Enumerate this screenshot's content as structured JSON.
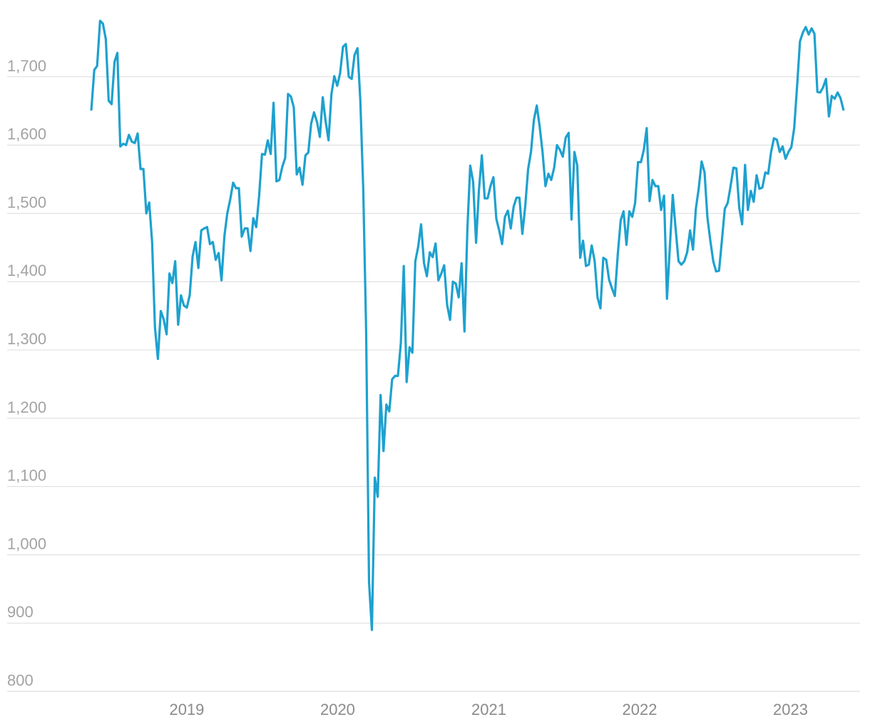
{
  "chart_data": {
    "type": "line",
    "title": "",
    "xlabel": "",
    "ylabel": "",
    "ylim": [
      800,
      1800
    ],
    "xlim": [
      "2018-05-01",
      "2023-06-01"
    ],
    "y_ticks": [
      "800",
      "900",
      "1,000",
      "1,100",
      "1,200",
      "1,300",
      "1,400",
      "1,500",
      "1,600",
      "1,700"
    ],
    "x_ticks": [
      "2019",
      "2020",
      "2021",
      "2022",
      "2023"
    ],
    "grid": true,
    "legend": "none",
    "color": "#1da1cf",
    "series": [
      {
        "x": [
          "2018-05-15",
          "2018-05-22",
          "2018-05-29",
          "2018-06-05",
          "2018-06-12",
          "2018-06-19",
          "2018-06-26",
          "2018-07-03",
          "2018-07-10",
          "2018-07-17",
          "2018-07-24",
          "2018-07-31",
          "2018-08-07",
          "2018-08-14",
          "2018-08-21",
          "2018-08-28",
          "2018-09-04",
          "2018-09-11",
          "2018-09-18",
          "2018-09-25",
          "2018-10-02",
          "2018-10-09",
          "2018-10-16",
          "2018-10-23",
          "2018-10-30",
          "2018-11-06",
          "2018-11-13",
          "2018-11-20",
          "2018-11-27",
          "2018-12-04",
          "2018-12-11",
          "2018-12-18",
          "2018-12-25",
          "2019-01-01",
          "2019-01-08",
          "2019-01-15",
          "2019-01-22",
          "2019-01-29",
          "2019-02-05",
          "2019-02-12",
          "2019-02-19",
          "2019-02-26",
          "2019-03-05",
          "2019-03-12",
          "2019-03-19",
          "2019-03-26",
          "2019-04-02",
          "2019-04-09",
          "2019-04-16",
          "2019-04-23",
          "2019-04-30",
          "2019-05-07",
          "2019-05-14",
          "2019-05-21",
          "2019-05-28",
          "2019-06-04",
          "2019-06-11",
          "2019-06-18",
          "2019-06-25",
          "2019-07-02",
          "2019-07-09",
          "2019-07-16",
          "2019-07-23",
          "2019-07-30",
          "2019-08-06",
          "2019-08-13",
          "2019-08-20",
          "2019-08-27",
          "2019-09-03",
          "2019-09-10",
          "2019-09-17",
          "2019-09-24",
          "2019-10-01",
          "2019-10-08",
          "2019-10-15",
          "2019-10-22",
          "2019-10-29",
          "2019-11-05",
          "2019-11-12",
          "2019-11-19",
          "2019-11-26",
          "2019-12-03",
          "2019-12-10",
          "2019-12-17",
          "2019-12-24",
          "2019-12-31",
          "2020-01-07",
          "2020-01-14",
          "2020-01-21",
          "2020-01-28",
          "2020-02-04",
          "2020-02-11",
          "2020-02-18",
          "2020-02-25",
          "2020-03-03",
          "2020-03-10",
          "2020-03-17",
          "2020-03-24",
          "2020-03-31",
          "2020-04-07",
          "2020-04-14",
          "2020-04-21",
          "2020-04-28",
          "2020-05-05",
          "2020-05-12",
          "2020-05-19",
          "2020-05-26",
          "2020-06-02",
          "2020-06-09",
          "2020-06-16",
          "2020-06-23",
          "2020-06-30",
          "2020-07-07",
          "2020-07-14",
          "2020-07-21",
          "2020-07-28",
          "2020-08-04",
          "2020-08-11",
          "2020-08-18",
          "2020-08-25",
          "2020-09-01",
          "2020-09-08",
          "2020-09-15",
          "2020-09-22",
          "2020-09-29",
          "2020-10-06",
          "2020-10-13",
          "2020-10-20",
          "2020-10-27",
          "2020-11-03",
          "2020-11-10",
          "2020-11-17",
          "2020-11-24",
          "2020-12-01",
          "2020-12-08",
          "2020-12-15",
          "2020-12-22",
          "2020-12-29",
          "2021-01-05",
          "2021-01-12",
          "2021-01-19",
          "2021-01-26",
          "2021-02-02",
          "2021-02-09",
          "2021-02-16",
          "2021-02-23",
          "2021-03-02",
          "2021-03-09",
          "2021-03-16",
          "2021-03-23",
          "2021-03-30",
          "2021-04-06",
          "2021-04-13",
          "2021-04-20",
          "2021-04-27",
          "2021-05-04",
          "2021-05-11",
          "2021-05-18",
          "2021-05-25",
          "2021-06-01",
          "2021-06-08",
          "2021-06-15",
          "2021-06-22",
          "2021-06-29",
          "2021-07-06",
          "2021-07-13",
          "2021-07-20",
          "2021-07-27",
          "2021-08-03",
          "2021-08-10",
          "2021-08-17",
          "2021-08-24",
          "2021-08-31",
          "2021-09-07",
          "2021-09-14",
          "2021-09-21",
          "2021-09-28",
          "2021-10-05",
          "2021-10-12",
          "2021-10-19",
          "2021-10-26",
          "2021-11-02",
          "2021-11-09",
          "2021-11-16",
          "2021-11-23",
          "2021-11-30",
          "2021-12-07",
          "2021-12-14",
          "2021-12-21",
          "2021-12-28",
          "2022-01-04",
          "2022-01-11",
          "2022-01-18",
          "2022-01-25",
          "2022-02-01",
          "2022-02-08",
          "2022-02-15",
          "2022-02-22",
          "2022-03-01",
          "2022-03-08",
          "2022-03-15",
          "2022-03-22",
          "2022-03-29",
          "2022-04-05",
          "2022-04-12",
          "2022-04-19",
          "2022-04-26",
          "2022-05-03",
          "2022-05-10",
          "2022-05-17",
          "2022-05-24",
          "2022-05-31",
          "2022-06-07",
          "2022-06-14",
          "2022-06-21",
          "2022-06-28",
          "2022-07-05",
          "2022-07-12",
          "2022-07-19",
          "2022-07-26",
          "2022-08-02",
          "2022-08-09",
          "2022-08-16",
          "2022-08-23",
          "2022-08-30",
          "2022-09-06",
          "2022-09-13",
          "2022-09-20",
          "2022-09-27",
          "2022-10-04",
          "2022-10-11",
          "2022-10-18",
          "2022-10-25",
          "2022-11-01",
          "2022-11-08",
          "2022-11-15",
          "2022-11-22",
          "2022-11-29",
          "2022-12-06",
          "2022-12-13",
          "2022-12-20",
          "2022-12-27",
          "2023-01-03",
          "2023-01-10",
          "2023-01-17",
          "2023-01-24",
          "2023-01-31",
          "2023-02-07",
          "2023-02-14",
          "2023-02-21",
          "2023-02-28",
          "2023-03-07",
          "2023-03-14",
          "2023-03-21",
          "2023-03-28",
          "2023-04-04",
          "2023-04-11",
          "2023-04-18",
          "2023-04-25",
          "2023-05-02",
          "2023-05-09"
        ],
        "values": [
          1652,
          1710,
          1716,
          1782,
          1778,
          1755,
          1665,
          1660,
          1722,
          1735,
          1598,
          1602,
          1600,
          1615,
          1605,
          1603,
          1617,
          1565,
          1565,
          1500,
          1516,
          1458,
          1333,
          1287,
          1357,
          1345,
          1323,
          1412,
          1398,
          1430,
          1337,
          1380,
          1365,
          1362,
          1380,
          1437,
          1458,
          1420,
          1475,
          1478,
          1480,
          1455,
          1458,
          1432,
          1442,
          1402,
          1467,
          1500,
          1520,
          1545,
          1537,
          1537,
          1466,
          1478,
          1478,
          1445,
          1493,
          1480,
          1526,
          1587,
          1586,
          1607,
          1587,
          1662,
          1547,
          1549,
          1568,
          1581,
          1675,
          1671,
          1655,
          1557,
          1567,
          1542,
          1585,
          1589,
          1632,
          1648,
          1634,
          1612,
          1670,
          1635,
          1607,
          1675,
          1701,
          1687,
          1705,
          1744,
          1748,
          1700,
          1697,
          1732,
          1742,
          1665,
          1535,
          1330,
          960,
          890,
          1113,
          1085,
          1234,
          1152,
          1220,
          1210,
          1257,
          1262,
          1262,
          1310,
          1423,
          1253,
          1304,
          1296,
          1430,
          1451,
          1484,
          1427,
          1408,
          1443,
          1436,
          1456,
          1402,
          1412,
          1424,
          1366,
          1344,
          1400,
          1397,
          1377,
          1427,
          1327,
          1477,
          1570,
          1546,
          1457,
          1534,
          1585,
          1522,
          1522,
          1540,
          1553,
          1492,
          1475,
          1455,
          1495,
          1504,
          1478,
          1510,
          1523,
          1523,
          1470,
          1510,
          1565,
          1590,
          1637,
          1658,
          1627,
          1590,
          1540,
          1558,
          1549,
          1567,
          1600,
          1593,
          1583,
          1611,
          1618,
          1491,
          1590,
          1570,
          1435,
          1460,
          1423,
          1425,
          1453,
          1430,
          1377,
          1361,
          1435,
          1432,
          1403,
          1390,
          1379,
          1440,
          1490,
          1503,
          1454,
          1503,
          1495,
          1515,
          1575,
          1575,
          1593,
          1625,
          1518,
          1549,
          1540,
          1540,
          1505,
          1526,
          1375,
          1450,
          1527,
          1478,
          1430,
          1425,
          1430,
          1443,
          1475,
          1447,
          1507,
          1537,
          1576,
          1560,
          1494,
          1460,
          1430,
          1415,
          1416,
          1460,
          1507,
          1515,
          1540,
          1567,
          1566,
          1508,
          1484,
          1571,
          1505,
          1533,
          1517,
          1556,
          1536,
          1538,
          1560,
          1558,
          1590,
          1610,
          1608,
          1590,
          1598,
          1580,
          1590,
          1597,
          1625,
          1687,
          1752,
          1765,
          1773,
          1762,
          1771,
          1763,
          1678,
          1677,
          1685,
          1697,
          1642,
          1672,
          1668,
          1677,
          1669,
          1652
        ]
      }
    ]
  }
}
